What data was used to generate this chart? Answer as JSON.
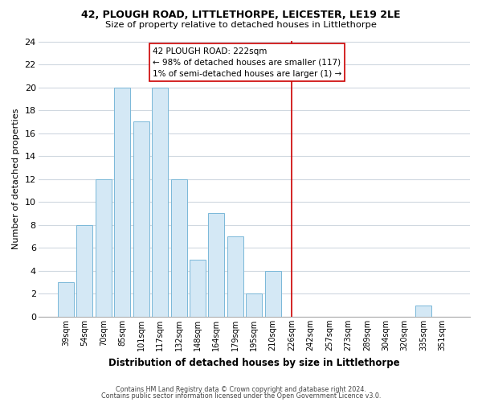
{
  "title1": "42, PLOUGH ROAD, LITTLETHORPE, LEICESTER, LE19 2LE",
  "title2": "Size of property relative to detached houses in Littlethorpe",
  "xlabel": "Distribution of detached houses by size in Littlethorpe",
  "ylabel": "Number of detached properties",
  "bar_labels": [
    "39sqm",
    "54sqm",
    "70sqm",
    "85sqm",
    "101sqm",
    "117sqm",
    "132sqm",
    "148sqm",
    "164sqm",
    "179sqm",
    "195sqm",
    "210sqm",
    "226sqm",
    "242sqm",
    "257sqm",
    "273sqm",
    "289sqm",
    "304sqm",
    "320sqm",
    "335sqm",
    "351sqm"
  ],
  "bar_values": [
    3,
    8,
    12,
    20,
    17,
    20,
    12,
    5,
    9,
    7,
    2,
    4,
    0,
    0,
    0,
    0,
    0,
    0,
    0,
    1,
    0
  ],
  "bar_color": "#d4e8f5",
  "bar_edge_color": "#7ab8d8",
  "vline_color": "#cc0000",
  "annotation_title": "42 PLOUGH ROAD: 222sqm",
  "annotation_line1": "← 98% of detached houses are smaller (117)",
  "annotation_line2": "1% of semi-detached houses are larger (1) →",
  "ylim": [
    0,
    24
  ],
  "yticks": [
    0,
    2,
    4,
    6,
    8,
    10,
    12,
    14,
    16,
    18,
    20,
    22,
    24
  ],
  "footer1": "Contains HM Land Registry data © Crown copyright and database right 2024.",
  "footer2": "Contains public sector information licensed under the Open Government Licence v3.0.",
  "bg_color": "#ffffff",
  "plot_bg_color": "#ffffff",
  "grid_color": "#d0d8e0"
}
